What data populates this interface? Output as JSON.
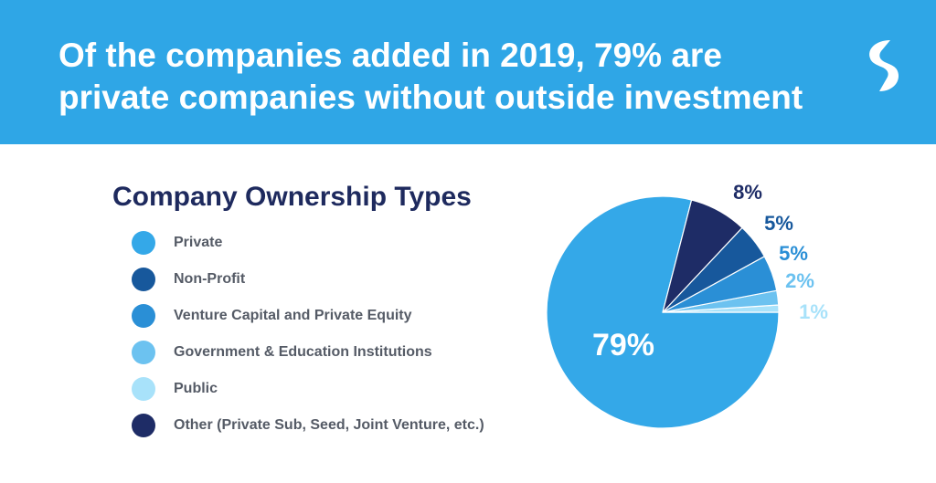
{
  "header": {
    "headline_line1": "Of the companies added in 2019, 79% are",
    "headline_line2": "private companies without outside investment",
    "background": "#2fa6e6",
    "logo": "s-logo-icon"
  },
  "chart_data": {
    "type": "pie",
    "title": "Company Ownership Types",
    "slices": [
      {
        "label": "Private",
        "value": 79,
        "display": "79%",
        "color": "#34a8e8"
      },
      {
        "label": "Public",
        "value": 1,
        "display": "1%",
        "color": "#a8e2fa"
      },
      {
        "label": "Government & Education Institutions",
        "value": 2,
        "display": "2%",
        "color": "#6cc2f0"
      },
      {
        "label": "Venture Capital and Private Equity",
        "value": 5,
        "display": "5%",
        "color": "#2a8fd6"
      },
      {
        "label": "Non-Profit",
        "value": 5,
        "display": "5%",
        "color": "#17589c"
      },
      {
        "label": "Other (Private Sub, Seed, Joint Venture, etc.)",
        "value": 8,
        "display": "8%",
        "color": "#1e2c66"
      }
    ],
    "legend": {
      "placement": "left",
      "entries": [
        {
          "label": "Private",
          "color": "#34a8e8"
        },
        {
          "label": "Non-Profit",
          "color": "#17589c"
        },
        {
          "label": "Venture Capital and Private Equity",
          "color": "#2a8fd6"
        },
        {
          "label": "Government & Education Institutions",
          "color": "#6cc2f0"
        },
        {
          "label": "Public",
          "color": "#a8e2fa"
        },
        {
          "label": "Other (Private Sub, Seed, Joint Venture, etc.)",
          "color": "#1e2c66"
        }
      ]
    }
  }
}
